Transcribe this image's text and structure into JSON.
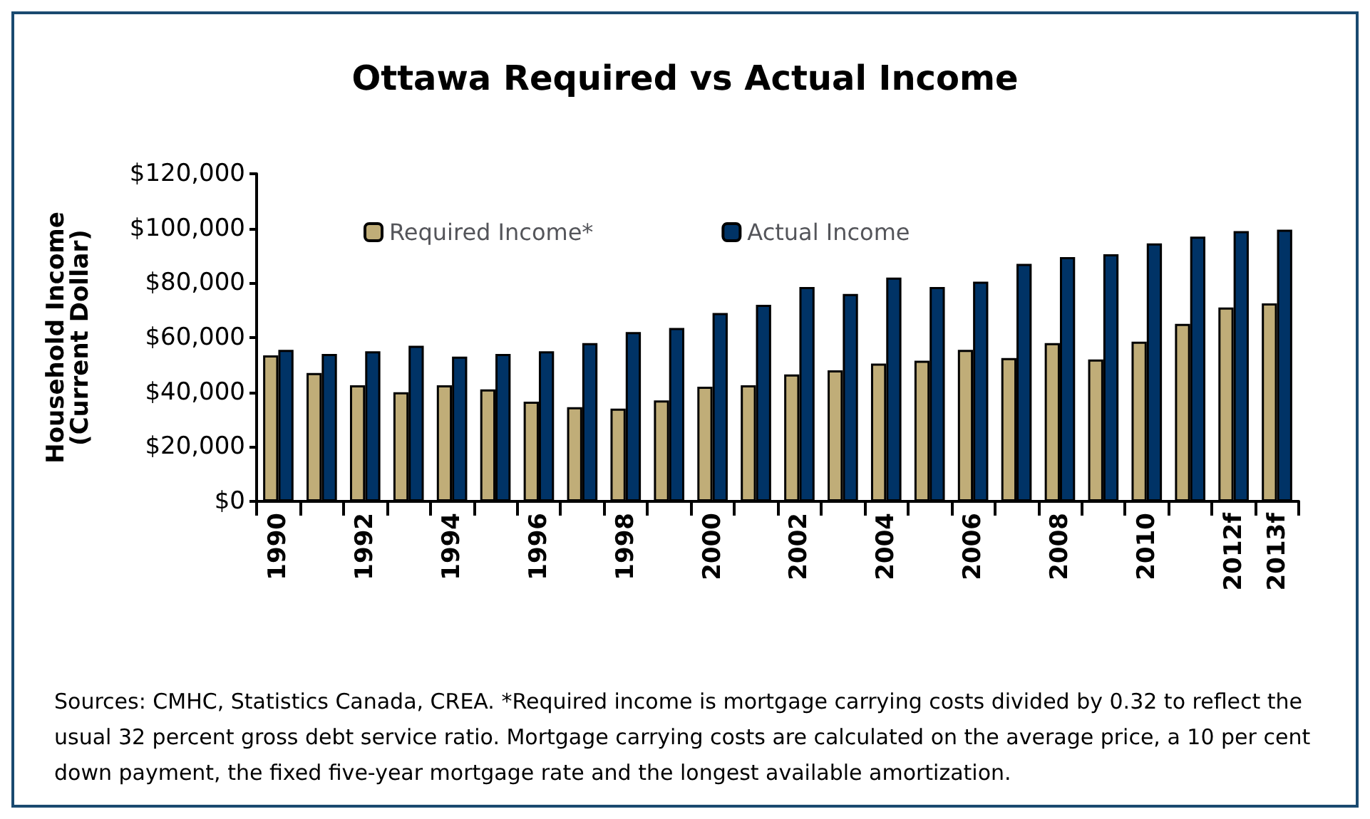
{
  "chart_data": {
    "type": "bar",
    "title": "Ottawa Required vs Actual Income",
    "ylabel": "Household Income\n(Current Dollar)",
    "categories": [
      "1990",
      null,
      "1992",
      null,
      "1994",
      null,
      "1996",
      null,
      "1998",
      null,
      "2000",
      null,
      "2002",
      null,
      "2004",
      null,
      "2006",
      null,
      "2008",
      null,
      "2010",
      null,
      "2012f",
      "2013f"
    ],
    "series": [
      {
        "name": "Required Income*",
        "color": "#c0ad78",
        "values": [
          53500,
          47000,
          42500,
          40000,
          42500,
          41000,
          36500,
          34500,
          34000,
          37000,
          42000,
          42500,
          46500,
          48000,
          50500,
          51500,
          55500,
          52500,
          58000,
          52000,
          58500,
          65000,
          71000,
          72500
        ]
      },
      {
        "name": "Actual Income",
        "color": "#003366",
        "values": [
          55500,
          54000,
          55000,
          57000,
          53000,
          54000,
          55000,
          58000,
          62000,
          63500,
          69000,
          72000,
          78500,
          76000,
          82000,
          78500,
          80500,
          87000,
          89500,
          90500,
          94500,
          97000,
          99000,
          99500
        ]
      }
    ],
    "ylim": [
      0,
      120000
    ],
    "yticks": [
      {
        "value": 0,
        "label": "$0"
      },
      {
        "value": 20000,
        "label": "$20,000"
      },
      {
        "value": 40000,
        "label": "$40,000"
      },
      {
        "value": 60000,
        "label": "$60,000"
      },
      {
        "value": 80000,
        "label": "$80,000"
      },
      {
        "value": 100000,
        "label": "$100,000"
      },
      {
        "value": 120000,
        "label": "$120,000"
      }
    ],
    "grid": false,
    "legend": "top left",
    "annotations": [
      "Sources: CMHC, Statistics Canada, CREA. *Required income is mortgage carrying costs divided by 0.32 to reflect the usual 32 percent gross debt service ratio. Mortgage carrying costs are calculated on the average price, a 10 per cent down payment, the fixed five-year mortgage rate and the longest available amortization."
    ]
  }
}
